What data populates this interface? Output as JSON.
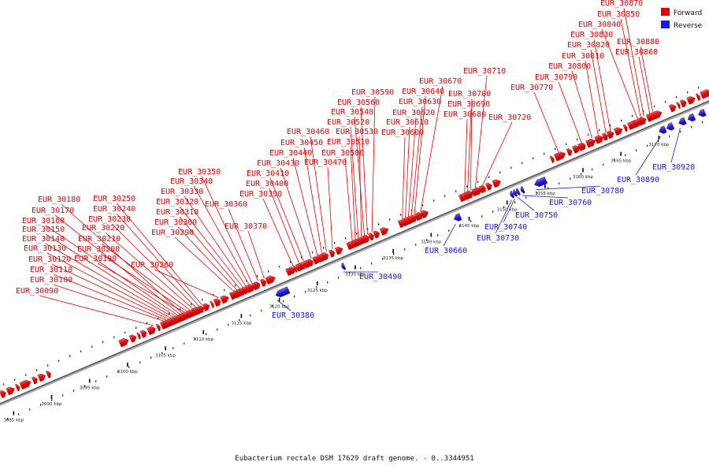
{
  "caption": "Eubacterium rectale DSM 17629 draft genome. - 0..3344951",
  "legend": {
    "forward_label": "Forward",
    "reverse_label": "Reverse",
    "forward_color": "#ee0000",
    "reverse_color": "#1a1aee"
  },
  "axis": {
    "unit": "kbp",
    "start_kbp": 3083.2,
    "end_kbp": 3176.6,
    "tick_labels": [
      "3085 kbp",
      "3090 kbp",
      "3095 kbp",
      "3100 kbp",
      "3105 kbp",
      "3110 kbp",
      "3115 kbp",
      "3120 kbp",
      "3125 kbp",
      "3130 kbp",
      "3135 kbp",
      "3140 kbp",
      "3145 kbp",
      "3150 kbp",
      "3155 kbp",
      "3160 kbp",
      "3165 kbp",
      "3170 kbp"
    ]
  },
  "forward_genes": [
    {
      "label": "EUR_30090",
      "kbp": 3103.4
    },
    {
      "label": "EUR_30100",
      "kbp": 3104.8
    },
    {
      "label": "EUR_30110",
      "kbp": 3105.1
    },
    {
      "label": "EUR_30120",
      "kbp": 3105.4
    },
    {
      "label": "EUR_30130",
      "kbp": 3105.7
    },
    {
      "label": "EUR_30140",
      "kbp": 3106.0
    },
    {
      "label": "EUR_30150",
      "kbp": 3106.3
    },
    {
      "label": "EUR_30160",
      "kbp": 3106.6
    },
    {
      "label": "EUR_30170",
      "kbp": 3106.9
    },
    {
      "label": "EUR_30180",
      "kbp": 3107.2
    },
    {
      "label": "EUR_30190",
      "kbp": 3107.5
    },
    {
      "label": "EUR_30200",
      "kbp": 3107.8
    },
    {
      "label": "EUR_30210",
      "kbp": 3108.2
    },
    {
      "label": "EUR_30220",
      "kbp": 3108.6
    },
    {
      "label": "EUR_30230",
      "kbp": 3109.0
    },
    {
      "label": "EUR_30240",
      "kbp": 3109.4
    },
    {
      "label": "EUR_30250",
      "kbp": 3109.8
    },
    {
      "label": "EUR_30260",
      "kbp": 3112.0
    },
    {
      "label": "EUR_30290",
      "kbp": 3114.0
    },
    {
      "label": "EUR_30300",
      "kbp": 3114.4
    },
    {
      "label": "EUR_30310",
      "kbp": 3114.8
    },
    {
      "label": "EUR_30320",
      "kbp": 3115.2
    },
    {
      "label": "EUR_30330",
      "kbp": 3115.6
    },
    {
      "label": "EUR_30340",
      "kbp": 3116.0
    },
    {
      "label": "EUR_30350",
      "kbp": 3116.4
    },
    {
      "label": "EUR_30360",
      "kbp": 3117.2
    },
    {
      "label": "EUR_30370",
      "kbp": 3118.0
    },
    {
      "label": "EUR_30390",
      "kbp": 3121.8
    },
    {
      "label": "EUR_30400",
      "kbp": 3122.6
    },
    {
      "label": "EUR_30410",
      "kbp": 3123.2
    },
    {
      "label": "EUR_30430",
      "kbp": 3124.2
    },
    {
      "label": "EUR_30440",
      "kbp": 3125.0
    },
    {
      "label": "EUR_30450",
      "kbp": 3125.6
    },
    {
      "label": "EUR_30460",
      "kbp": 3126.2
    },
    {
      "label": "EUR_30470",
      "kbp": 3127.0
    },
    {
      "label": "EUR_30500",
      "kbp": 3129.6
    },
    {
      "label": "EUR_30510",
      "kbp": 3130.0
    },
    {
      "label": "EUR_30520",
      "kbp": 3130.4
    },
    {
      "label": "EUR_30530",
      "kbp": 3130.8
    },
    {
      "label": "EUR_30540",
      "kbp": 3131.2
    },
    {
      "label": "EUR_30560",
      "kbp": 3131.6
    },
    {
      "label": "EUR_30590",
      "kbp": 3132.2
    },
    {
      "label": "EUR_30600",
      "kbp": 3136.2
    },
    {
      "label": "EUR_30610",
      "kbp": 3136.6
    },
    {
      "label": "EUR_30620",
      "kbp": 3137.0
    },
    {
      "label": "EUR_30630",
      "kbp": 3137.4
    },
    {
      "label": "EUR_30640",
      "kbp": 3137.8
    },
    {
      "label": "EUR_30670",
      "kbp": 3138.6
    },
    {
      "label": "EUR_30680",
      "kbp": 3144.4
    },
    {
      "label": "EUR_30690",
      "kbp": 3144.8
    },
    {
      "label": "EUR_30700",
      "kbp": 3145.2
    },
    {
      "label": "EUR_30710",
      "kbp": 3145.8
    },
    {
      "label": "EUR_30720",
      "kbp": 3146.8
    },
    {
      "label": "EUR_30770",
      "kbp": 3156.8
    },
    {
      "label": "EUR_30790",
      "kbp": 3159.8
    },
    {
      "label": "EUR_30800",
      "kbp": 3161.2
    },
    {
      "label": "EUR_30810",
      "kbp": 3162.0
    },
    {
      "label": "EUR_30820",
      "kbp": 3163.0
    },
    {
      "label": "EUR_30830",
      "kbp": 3163.6
    },
    {
      "label": "EUR_30840",
      "kbp": 3167.2
    },
    {
      "label": "EUR_30850",
      "kbp": 3167.6
    },
    {
      "label": "EUR_30860",
      "kbp": 3168.8
    },
    {
      "label": "EUR_30870",
      "kbp": 3168.0
    },
    {
      "label": "EUR_30880",
      "kbp": 3169.2
    }
  ],
  "reverse_genes": [
    {
      "label": "EUR_30380",
      "kbp": 3119.5
    },
    {
      "label": "EUR_30490",
      "kbp": 3128.2
    },
    {
      "label": "EUR_30660",
      "kbp": 3143.0
    },
    {
      "label": "EUR_30730",
      "kbp": 3150.4
    },
    {
      "label": "EUR_30740",
      "kbp": 3150.8
    },
    {
      "label": "EUR_30750",
      "kbp": 3151.2
    },
    {
      "label": "EUR_30760",
      "kbp": 3151.8
    },
    {
      "label": "EUR_30780",
      "kbp": 3153.6
    },
    {
      "label": "EUR_30890",
      "kbp": 3170.0
    },
    {
      "label": "EUR_30920",
      "kbp": 3172.6
    }
  ]
}
